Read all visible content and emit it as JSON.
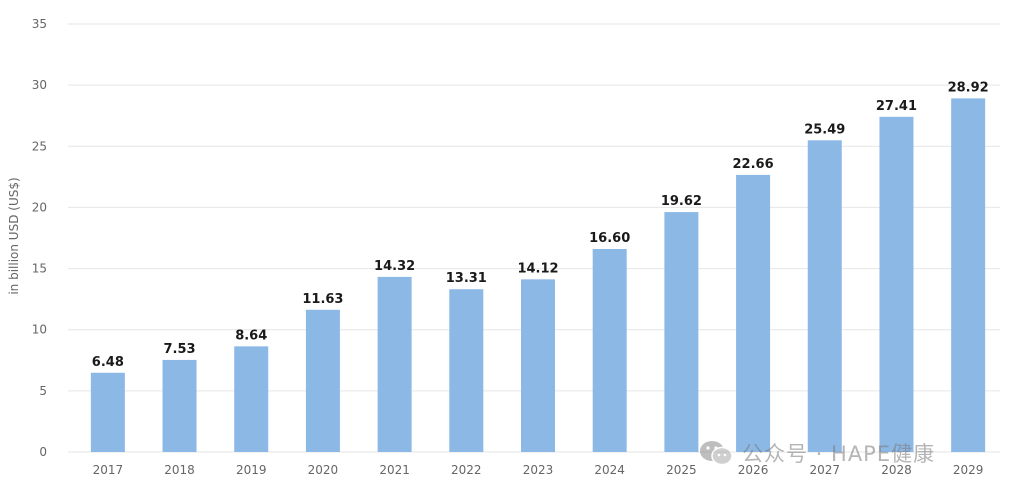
{
  "chart_data": {
    "type": "bar",
    "categories": [
      "2017",
      "2018",
      "2019",
      "2020",
      "2021",
      "2022",
      "2023",
      "2024",
      "2025",
      "2026",
      "2027",
      "2028",
      "2029"
    ],
    "values": [
      6.48,
      7.53,
      8.64,
      11.63,
      14.32,
      13.31,
      14.12,
      16.6,
      19.62,
      22.66,
      25.49,
      27.41,
      28.92
    ],
    "value_labels": [
      "6.48",
      "7.53",
      "8.64",
      "11.63",
      "14.32",
      "13.31",
      "14.12",
      "16.60",
      "19.62",
      "22.66",
      "25.49",
      "27.41",
      "28.92"
    ],
    "ylabel": "in billion USD (US$)",
    "ylim": [
      0,
      35
    ],
    "yticks": [
      "0",
      "5",
      "10",
      "15",
      "20",
      "25",
      "30",
      "35"
    ],
    "grid": true,
    "bar_color": "#8cb8e6"
  },
  "watermark": {
    "icon": "wechat-icon",
    "text": "公众号 · HAPE健康"
  }
}
